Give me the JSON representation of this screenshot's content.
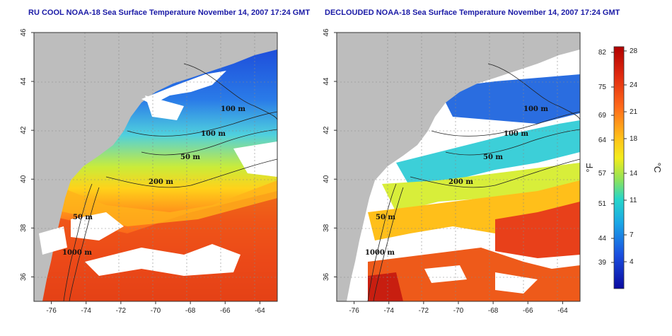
{
  "maps": [
    {
      "title": "RU COOL NOAA-18 Sea Surface Temperature November 14, 2007 17:24 GMT",
      "variant": "raw",
      "contours": [
        "100 m",
        "100 m",
        "50 m",
        "200 m",
        "50 m",
        "1000 m"
      ]
    },
    {
      "title": "DECLOUDED NOAA-18 Sea Surface Temperature November 14, 2007 17:24 GMT",
      "variant": "declouded",
      "contours": [
        "100 m",
        "100 m",
        "50 m",
        "200 m",
        "50 m",
        "1000 m"
      ]
    }
  ],
  "axes": {
    "x_ticks": [
      "-76",
      "-74",
      "-72",
      "-70",
      "-68",
      "-66",
      "-64"
    ],
    "y_ticks": [
      "36",
      "38",
      "40",
      "42",
      "44",
      "46"
    ]
  },
  "colorbar": {
    "fahrenheit_ticks": [
      "82",
      "75",
      "69",
      "64",
      "57",
      "51",
      "44",
      "39"
    ],
    "celsius_ticks": [
      "28",
      "24",
      "21",
      "18",
      "14",
      "11",
      "7",
      "4"
    ],
    "fahrenheit_label": "°F",
    "celsius_label": "°C"
  },
  "colors": {
    "land": "#bdbdbd",
    "cloud": "#ffffff",
    "title": "#1a1aa6"
  }
}
